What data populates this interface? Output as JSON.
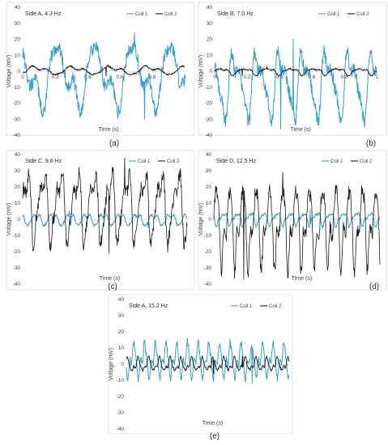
{
  "chart_data": [
    {
      "type": "line",
      "caption": "(a)",
      "title": "Side A, 4.3 Hz",
      "xlabel": "Time (s)",
      "ylabel": "Voltage (mV)",
      "ylim": [
        -40,
        40
      ],
      "xlim": [
        0,
        1
      ],
      "yticks": [
        "40",
        "30",
        "20",
        "10",
        "0",
        "-10",
        "-20",
        "-30",
        "-40"
      ],
      "xticks": [
        "0",
        "0.2",
        "0.4",
        "0.6",
        "0.8",
        "1"
      ],
      "legend_position": "top-right",
      "series": [
        {
          "name": "Coil 1",
          "color": "#2e9fd8",
          "freq": 4.3,
          "peak": 24,
          "trough": -30,
          "width": 1.0
        },
        {
          "name": "Coil 2",
          "color": "#1a1a1a",
          "freq": 4.3,
          "peak": 4,
          "trough": -3,
          "width": 0.9
        }
      ]
    },
    {
      "type": "line",
      "caption": "(b)",
      "title": "Side B, 7.0 Hz",
      "xlabel": "Time (s)",
      "ylabel": "Voltage (mV)",
      "ylim": [
        -40,
        40
      ],
      "xlim": [
        0,
        1
      ],
      "yticks": [
        "40",
        "30",
        "20",
        "10",
        "0",
        "-10",
        "-20",
        "-30",
        "-40"
      ],
      "xticks": [
        "0",
        "0.2",
        "0.4",
        "0.6",
        "0.8",
        "1"
      ],
      "legend_position": "top-right",
      "series": [
        {
          "name": "Coil 1",
          "color": "#2e9fd8",
          "freq": 7.0,
          "peak": 20,
          "trough": -36,
          "width": 1.0
        },
        {
          "name": "Coil 2",
          "color": "#1a1a1a",
          "freq": 7.0,
          "peak": 3,
          "trough": -3,
          "width": 0.9
        }
      ]
    },
    {
      "type": "line",
      "caption": "(c)",
      "title": "Side C, 9.8 Hz",
      "xlabel": "Time (s)",
      "ylabel": "Voltage (mV)",
      "ylim": [
        -40,
        40
      ],
      "xlim": [
        0,
        1
      ],
      "yticks": [
        "40",
        "30",
        "20",
        "10",
        "0",
        "-10",
        "-20",
        "-30",
        "-40"
      ],
      "xticks": [],
      "legend_position": "top-right",
      "series": [
        {
          "name": "Coil 1",
          "color": "#2e9fd8",
          "freq": 9.8,
          "peak": 5,
          "trough": -5,
          "width": 1.0
        },
        {
          "name": "Coil 2",
          "color": "#1a1a1a",
          "freq": 9.8,
          "peak": 38,
          "trough": -21,
          "width": 0.8
        }
      ]
    },
    {
      "type": "line",
      "caption": "(d)",
      "title": "Side D, 12.5 Hz",
      "xlabel": "Time (s)",
      "ylabel": "Voltage (mV)",
      "ylim": [
        -40,
        40
      ],
      "xlim": [
        0,
        1
      ],
      "yticks": [
        "40",
        "30",
        "20",
        "10",
        "0",
        "-10",
        "-20",
        "-30",
        "-40"
      ],
      "xticks": [],
      "legend_position": "top-right",
      "series": [
        {
          "name": "Coil 1",
          "color": "#2e9fd8",
          "freq": 12.5,
          "peak": 6,
          "trough": -5,
          "width": 1.0
        },
        {
          "name": "Coil 2",
          "color": "#1a1a1a",
          "freq": 12.5,
          "peak": 29,
          "trough": -37,
          "width": 0.8
        }
      ]
    },
    {
      "type": "line",
      "caption": "(e)",
      "title": "Side A, 15.2 Hz",
      "xlabel": "Time (s)",
      "ylabel": "Voltage (mV)",
      "ylim": [
        -40,
        40
      ],
      "xlim": [
        0,
        1
      ],
      "yticks": [
        "40",
        "30",
        "20",
        "10",
        "0",
        "-10",
        "-20",
        "-30",
        "-40"
      ],
      "xticks": [],
      "legend_position": "top-right",
      "series": [
        {
          "name": "Coil 1",
          "color": "#2e9fd8",
          "freq": 15.2,
          "peak": 16,
          "trough": -12,
          "width": 1.0
        },
        {
          "name": "Coil 2",
          "color": "#1a1a1a",
          "freq": 15.2,
          "peak": 5,
          "trough": -6,
          "width": 0.9
        }
      ]
    }
  ]
}
